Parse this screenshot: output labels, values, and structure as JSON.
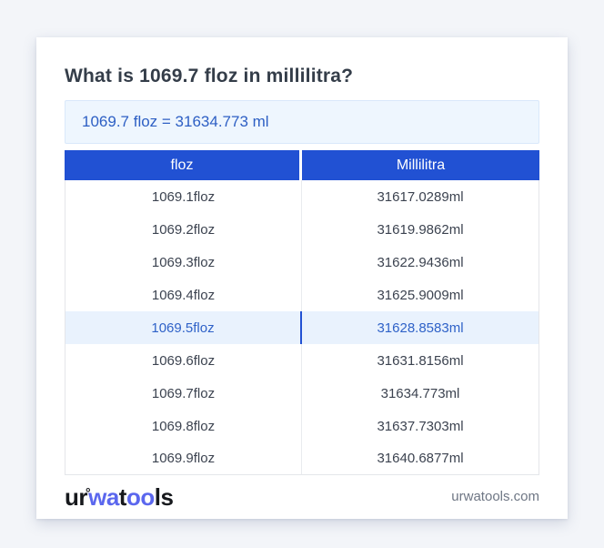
{
  "question": "What is 1069.7 floz in millilitra?",
  "result": "1069.7 floz = 31634.773 ml",
  "table": {
    "col1_header": "floz",
    "col2_header": "Millilitra",
    "rows": [
      [
        "1069.1floz",
        "31617.0289ml"
      ],
      [
        "1069.2floz",
        "31619.9862ml"
      ],
      [
        "1069.3floz",
        "31622.9436ml"
      ],
      [
        "1069.4floz",
        "31625.9009ml"
      ],
      [
        "1069.5floz",
        "31628.8583ml"
      ],
      [
        "1069.6floz",
        "31631.8156ml"
      ],
      [
        "1069.7floz",
        "31634.773ml"
      ],
      [
        "1069.8floz",
        "31637.7303ml"
      ],
      [
        "1069.9floz",
        "31640.6877ml"
      ]
    ],
    "highlighted_row_index": 4
  },
  "footer": {
    "logo_parts": {
      "p1": "ur",
      "ring": "°",
      "p2": "wa",
      "p3": "t",
      "p4": "oo",
      "p5": "ls"
    },
    "website": "urwatools.com"
  },
  "colors": {
    "header_bg": "#2151d3",
    "result_text": "#2d5fc4",
    "highlight_bg": "#e9f2fd",
    "highlight_text": "#2f62c8",
    "logo_blue": "#5b67ee"
  }
}
